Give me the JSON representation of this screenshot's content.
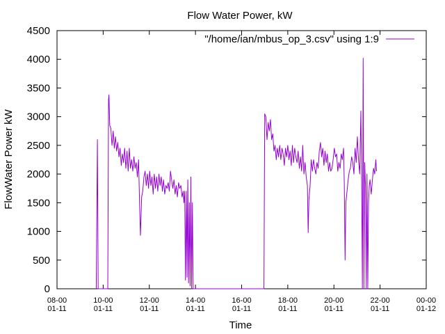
{
  "chart_data": {
    "type": "line",
    "title": "Flow Water Power, kW",
    "xlabel": "Time",
    "ylabel": "FlowWater Power kW",
    "legend": {
      "label": "\"/home/ian/mbus_op_3.csv\" using 1:9",
      "position": "top-right"
    },
    "xlim": [
      "01-11 08:00",
      "01-12 00:00"
    ],
    "ylim": [
      0,
      4500
    ],
    "y_ticks": [
      "0",
      "500",
      "1000",
      "1500",
      "2000",
      "2500",
      "3000",
      "3500",
      "4000",
      "4500"
    ],
    "x_ticks": [
      {
        "time": "08:00",
        "date": "01-11"
      },
      {
        "time": "10:00",
        "date": "01-11"
      },
      {
        "time": "12:00",
        "date": "01-11"
      },
      {
        "time": "14:00",
        "date": "01-11"
      },
      {
        "time": "16:00",
        "date": "01-11"
      },
      {
        "time": "18:00",
        "date": "01-11"
      },
      {
        "time": "20:00",
        "date": "01-11"
      },
      {
        "time": "22:00",
        "date": "01-11"
      },
      {
        "time": "00:00",
        "date": "01-12"
      }
    ],
    "colors": {
      "series": "#9400d3",
      "axes": "#000000"
    },
    "series": [
      {
        "name": "\"/home/ian/mbus_op_3.csv\" using 1:9",
        "points": [
          [
            "09:42",
            0
          ],
          [
            "09:45",
            2600
          ],
          [
            "09:47",
            0
          ],
          [
            "10:12",
            0
          ],
          [
            "10:14",
            3300
          ],
          [
            "10:15",
            3380
          ],
          [
            "10:17",
            2850
          ],
          [
            "10:20",
            2800
          ],
          [
            "10:23",
            2500
          ],
          [
            "10:26",
            2750
          ],
          [
            "10:29",
            2450
          ],
          [
            "10:32",
            2650
          ],
          [
            "10:35",
            2400
          ],
          [
            "10:38",
            2550
          ],
          [
            "10:41",
            2300
          ],
          [
            "10:44",
            2450
          ],
          [
            "10:47",
            2150
          ],
          [
            "10:50",
            2350
          ],
          [
            "10:53",
            2200
          ],
          [
            "10:56",
            2450
          ],
          [
            "10:59",
            2100
          ],
          [
            "11:02",
            2400
          ],
          [
            "11:05",
            2050
          ],
          [
            "11:08",
            2450
          ],
          [
            "11:11",
            2100
          ],
          [
            "11:14",
            2250
          ],
          [
            "11:17",
            2050
          ],
          [
            "11:20",
            2300
          ],
          [
            "11:23",
            2100
          ],
          [
            "11:26",
            2200
          ],
          [
            "11:29",
            1950
          ],
          [
            "11:32",
            2250
          ],
          [
            "11:35",
            1400
          ],
          [
            "11:37",
            930
          ],
          [
            "11:40",
            1600
          ],
          [
            "11:43",
            1700
          ],
          [
            "11:46",
            1950
          ],
          [
            "11:49",
            2050
          ],
          [
            "11:52",
            1800
          ],
          [
            "11:55",
            2000
          ],
          [
            "11:58",
            1750
          ],
          [
            "12:01",
            2050
          ],
          [
            "12:04",
            1800
          ],
          [
            "12:07",
            1950
          ],
          [
            "12:10",
            1650
          ],
          [
            "12:13",
            2000
          ],
          [
            "12:16",
            1750
          ],
          [
            "12:19",
            1950
          ],
          [
            "12:22",
            1700
          ],
          [
            "12:25",
            2000
          ],
          [
            "12:28",
            1800
          ],
          [
            "12:31",
            1950
          ],
          [
            "12:34",
            1700
          ],
          [
            "12:37",
            1900
          ],
          [
            "12:40",
            1650
          ],
          [
            "12:43",
            1800
          ],
          [
            "12:46",
            1750
          ],
          [
            "12:49",
            1850
          ],
          [
            "12:52",
            1700
          ],
          [
            "12:55",
            2050
          ],
          [
            "12:58",
            1900
          ],
          [
            "13:01",
            1750
          ],
          [
            "13:04",
            1900
          ],
          [
            "13:07",
            1650
          ],
          [
            "13:10",
            1800
          ],
          [
            "13:13",
            1600
          ],
          [
            "13:16",
            1850
          ],
          [
            "13:19",
            1750
          ],
          [
            "13:22",
            1800
          ],
          [
            "13:25",
            1600
          ],
          [
            "13:28",
            1700
          ],
          [
            "13:30",
            1500
          ],
          [
            "13:32",
            1700
          ],
          [
            "13:34",
            150
          ],
          [
            "13:36",
            1700
          ],
          [
            "13:38",
            200
          ],
          [
            "13:40",
            1900
          ],
          [
            "13:42",
            100
          ],
          [
            "13:44",
            1500
          ],
          [
            "13:46",
            50
          ],
          [
            "13:48",
            1950
          ],
          [
            "13:50",
            0
          ],
          [
            "13:52",
            1500
          ],
          [
            "13:54",
            0
          ],
          [
            "16:58",
            0
          ],
          [
            "17:00",
            3050
          ],
          [
            "17:03",
            3000
          ],
          [
            "17:06",
            2600
          ],
          [
            "17:09",
            2900
          ],
          [
            "17:12",
            2750
          ],
          [
            "17:15",
            2950
          ],
          [
            "17:18",
            2600
          ],
          [
            "17:21",
            2700
          ],
          [
            "17:24",
            2400
          ],
          [
            "17:27",
            2500
          ],
          [
            "17:30",
            2250
          ],
          [
            "17:33",
            2450
          ],
          [
            "17:36",
            2300
          ],
          [
            "17:39",
            2500
          ],
          [
            "17:42",
            2250
          ],
          [
            "17:45",
            2450
          ],
          [
            "17:48",
            2350
          ],
          [
            "17:51",
            2150
          ],
          [
            "17:54",
            2450
          ],
          [
            "17:57",
            2300
          ],
          [
            "18:00",
            2500
          ],
          [
            "18:03",
            2250
          ],
          [
            "18:06",
            2400
          ],
          [
            "18:09",
            2150
          ],
          [
            "18:12",
            2500
          ],
          [
            "18:15",
            2200
          ],
          [
            "18:18",
            2450
          ],
          [
            "18:21",
            2300
          ],
          [
            "18:24",
            2200
          ],
          [
            "18:27",
            2400
          ],
          [
            "18:30",
            2100
          ],
          [
            "18:33",
            2300
          ],
          [
            "18:36",
            2050
          ],
          [
            "18:39",
            2500
          ],
          [
            "18:42",
            2000
          ],
          [
            "18:45",
            2200
          ],
          [
            "18:48",
            1950
          ],
          [
            "18:51",
            1800
          ],
          [
            "18:53",
            980
          ],
          [
            "18:55",
            1550
          ],
          [
            "18:58",
            1800
          ],
          [
            "19:01",
            2250
          ],
          [
            "19:04",
            2050
          ],
          [
            "19:07",
            2250
          ],
          [
            "19:10",
            2100
          ],
          [
            "19:13",
            2000
          ],
          [
            "19:16",
            2200
          ],
          [
            "19:19",
            2100
          ],
          [
            "19:22",
            2400
          ],
          [
            "19:25",
            2550
          ],
          [
            "19:28",
            2300
          ],
          [
            "19:31",
            2450
          ],
          [
            "19:34",
            2150
          ],
          [
            "19:37",
            2400
          ],
          [
            "19:40",
            2200
          ],
          [
            "19:43",
            2350
          ],
          [
            "19:46",
            2050
          ],
          [
            "19:49",
            2200
          ],
          [
            "19:52",
            2050
          ],
          [
            "19:55",
            2100
          ],
          [
            "19:58",
            2250
          ],
          [
            "20:01",
            2450
          ],
          [
            "20:04",
            2300
          ],
          [
            "20:07",
            2350
          ],
          [
            "20:10",
            2050
          ],
          [
            "20:13",
            2200
          ],
          [
            "20:16",
            2100
          ],
          [
            "20:19",
            2350
          ],
          [
            "20:22",
            2250
          ],
          [
            "20:25",
            2450
          ],
          [
            "20:27",
            1800
          ],
          [
            "20:29",
            500
          ],
          [
            "20:31",
            1500
          ],
          [
            "20:34",
            1700
          ],
          [
            "20:37",
            1900
          ],
          [
            "20:40",
            2050
          ],
          [
            "20:43",
            2100
          ],
          [
            "20:46",
            2300
          ],
          [
            "20:49",
            2200
          ],
          [
            "20:52",
            2000
          ],
          [
            "20:55",
            2450
          ],
          [
            "20:58",
            2200
          ],
          [
            "21:01",
            2650
          ],
          [
            "21:04",
            2250
          ],
          [
            "21:07",
            2000
          ],
          [
            "21:10",
            3100
          ],
          [
            "21:12",
            1850
          ],
          [
            "21:14",
            0
          ],
          [
            "21:16",
            4020
          ],
          [
            "21:18",
            0
          ],
          [
            "21:20",
            2200
          ],
          [
            "21:22",
            1800
          ],
          [
            "21:24",
            0
          ],
          [
            "21:26",
            2000
          ],
          [
            "21:28",
            0
          ],
          [
            "21:30",
            1500
          ],
          [
            "21:32",
            1800
          ],
          [
            "21:34",
            1900
          ],
          [
            "21:37",
            1650
          ],
          [
            "21:40",
            1900
          ],
          [
            "21:43",
            2100
          ],
          [
            "21:46",
            2000
          ],
          [
            "21:49",
            2250
          ],
          [
            "21:51",
            2050
          ]
        ]
      }
    ]
  }
}
